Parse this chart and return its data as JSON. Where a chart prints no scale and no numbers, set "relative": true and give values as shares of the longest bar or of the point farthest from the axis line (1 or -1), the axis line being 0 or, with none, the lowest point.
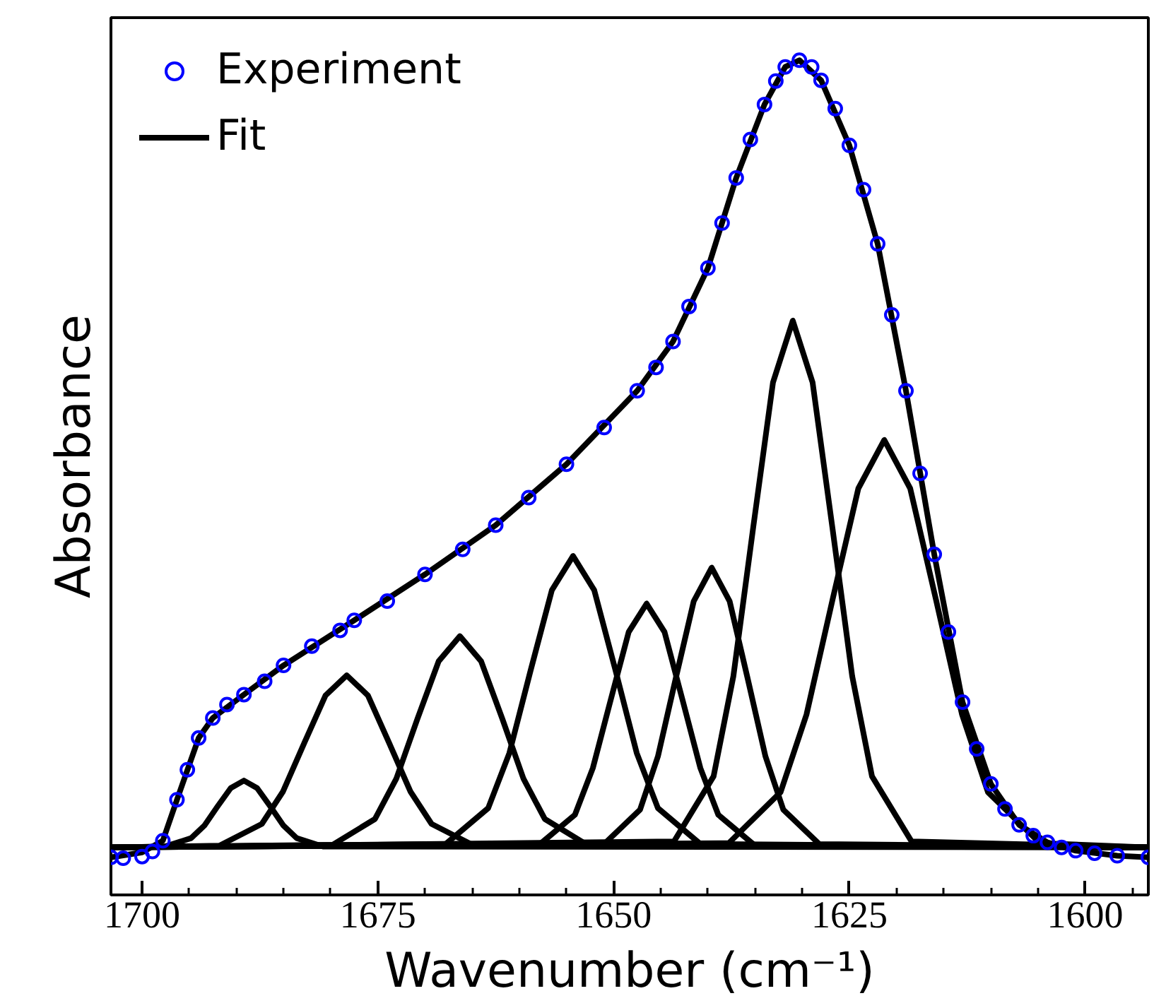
{
  "chart_data": {
    "type": "line",
    "relative": true,
    "xlabel": "Wavenumber (cm⁻¹)",
    "ylabel": "Absorbance",
    "xlim": [
      1703.3,
      1593.3
    ],
    "xticks": [
      1700,
      1675,
      1650,
      1625,
      1600
    ],
    "tick_labels": "x",
    "grid": false,
    "legend": "top left",
    "line_style": "solid",
    "series": [
      {
        "name": "Experiment",
        "type": "scatter",
        "marker": "circle",
        "color": "#0000ff",
        "x": [
          1703.3,
          1702,
          1700,
          1698.9,
          1697.8,
          1696.3,
          1695.2,
          1694,
          1692.5,
          1691,
          1689.2,
          1687,
          1685,
          1682,
          1679,
          1677.5,
          1674,
          1670,
          1666,
          1662.5,
          1659,
          1655,
          1651,
          1647.5,
          1645.5,
          1643.7,
          1642,
          1640,
          1638.5,
          1637,
          1635.5,
          1634,
          1632.8,
          1631.8,
          1630.3,
          1629,
          1628,
          1626.5,
          1625,
          1623.5,
          1622,
          1620.5,
          1619,
          1617.5,
          1616,
          1614.5,
          1613,
          1611.5,
          1610,
          1608.5,
          1607,
          1605.5,
          1604,
          1602.5,
          1601,
          1599,
          1596.6,
          1593.3
        ],
        "values": [
          0.045,
          0.044,
          0.046,
          0.052,
          0.065,
          0.114,
          0.15,
          0.188,
          0.212,
          0.228,
          0.24,
          0.256,
          0.275,
          0.298,
          0.317,
          0.329,
          0.352,
          0.384,
          0.414,
          0.443,
          0.476,
          0.516,
          0.56,
          0.604,
          0.632,
          0.663,
          0.705,
          0.751,
          0.805,
          0.859,
          0.905,
          0.947,
          0.975,
          0.992,
          1.0,
          0.992,
          0.976,
          0.942,
          0.898,
          0.845,
          0.78,
          0.695,
          0.604,
          0.505,
          0.408,
          0.315,
          0.231,
          0.175,
          0.133,
          0.103,
          0.084,
          0.071,
          0.063,
          0.057,
          0.053,
          0.05,
          0.047,
          0.045
        ]
      },
      {
        "name": "Fit",
        "color": "#000000",
        "x": [
          1703.3,
          1700,
          1697.8,
          1696.3,
          1694,
          1692.5,
          1689.2,
          1685,
          1677.5,
          1670,
          1662.5,
          1655,
          1647.5,
          1643.7,
          1640,
          1637,
          1634,
          1631.8,
          1630.3,
          1628,
          1625,
          1622,
          1619,
          1616,
          1613,
          1610,
          1607,
          1604,
          1601,
          1596.6,
          1593.3
        ],
        "values": [
          0.045,
          0.051,
          0.065,
          0.114,
          0.188,
          0.212,
          0.24,
          0.275,
          0.329,
          0.384,
          0.443,
          0.516,
          0.604,
          0.663,
          0.751,
          0.859,
          0.947,
          0.992,
          1.0,
          0.976,
          0.898,
          0.78,
          0.604,
          0.408,
          0.231,
          0.133,
          0.084,
          0.063,
          0.053,
          0.047,
          0.045
        ]
      },
      {
        "type": "line",
        "color": "#000000",
        "x": [
          1593.3,
          1680.8,
          1683.6,
          1685.0,
          1686.4,
          1687.8,
          1689.2,
          1690.6,
          1692.0,
          1693.4,
          1694.8,
          1697.6,
          1703.3
        ],
        "values": [
          0.057,
          0.058,
          0.068,
          0.083,
          0.106,
          0.128,
          0.137,
          0.128,
          0.106,
          0.083,
          0.068,
          0.058,
          0.057
        ]
      },
      {
        "type": "line",
        "color": "#000000",
        "x": [
          1593.3,
          1664.8,
          1669.3,
          1671.55,
          1673.8,
          1676.05,
          1678.3,
          1680.55,
          1682.8,
          1685.05,
          1687.3,
          1691.8,
          1703.3
        ],
        "values": [
          0.057,
          0.059,
          0.085,
          0.124,
          0.182,
          0.239,
          0.263,
          0.239,
          0.182,
          0.124,
          0.085,
          0.059,
          0.057
        ]
      },
      {
        "type": "line",
        "color": "#000000",
        "x": [
          1593.3,
          1652.8,
          1657.3,
          1659.55,
          1661.8,
          1664.05,
          1666.3,
          1668.55,
          1670.8,
          1673.05,
          1675.3,
          1679.8,
          1703.3
        ],
        "values": [
          0.057,
          0.06,
          0.091,
          0.139,
          0.211,
          0.28,
          0.31,
          0.28,
          0.211,
          0.139,
          0.091,
          0.06,
          0.057
        ]
      },
      {
        "type": "line",
        "color": "#000000",
        "x": [
          1593.3,
          1640.8,
          1645.3,
          1647.55,
          1649.8,
          1652.05,
          1654.3,
          1656.55,
          1658.8,
          1661.05,
          1663.3,
          1667.8,
          1703.3
        ],
        "values": [
          0.057,
          0.061,
          0.104,
          0.17,
          0.269,
          0.365,
          0.406,
          0.365,
          0.269,
          0.17,
          0.104,
          0.061,
          0.057
        ]
      },
      {
        "type": "line",
        "color": "#000000",
        "x": [
          1593.3,
          1635.1,
          1638.9,
          1640.8,
          1642.7,
          1644.6,
          1646.5,
          1648.4,
          1650.3,
          1652.2,
          1654.1,
          1657.9,
          1703.3
        ],
        "values": [
          0.057,
          0.06,
          0.096,
          0.152,
          0.234,
          0.315,
          0.349,
          0.315,
          0.234,
          0.152,
          0.096,
          0.06,
          0.057
        ]
      },
      {
        "type": "line",
        "color": "#000000",
        "x": [
          1593.3,
          1628.2,
          1632.0,
          1633.9,
          1635.8,
          1637.7,
          1639.6,
          1641.5,
          1643.4,
          1645.3,
          1647.2,
          1651.0,
          1703.3
        ],
        "values": [
          0.057,
          0.061,
          0.102,
          0.166,
          0.26,
          0.352,
          0.392,
          0.352,
          0.26,
          0.166,
          0.102,
          0.061,
          0.057
        ]
      },
      {
        "type": "line",
        "color": "#000000",
        "x": [
          1593.3,
          1618.4,
          1622.6,
          1624.7,
          1626.8,
          1628.9,
          1631.0,
          1633.1,
          1635.2,
          1637.3,
          1639.4,
          1643.6,
          1703.3
        ],
        "values": [
          0.057,
          0.064,
          0.142,
          0.262,
          0.44,
          0.614,
          0.688,
          0.614,
          0.44,
          0.262,
          0.142,
          0.064,
          0.057
        ]
      },
      {
        "type": "line",
        "color": "#000000",
        "x": [
          1593.3,
          1604.8,
          1610.3,
          1613.05,
          1615.8,
          1618.55,
          1621.3,
          1624.05,
          1626.8,
          1629.55,
          1632.3,
          1637.8,
          1703.3
        ],
        "values": [
          0.057,
          0.062,
          0.123,
          0.216,
          0.353,
          0.487,
          0.545,
          0.487,
          0.353,
          0.216,
          0.123,
          0.062,
          0.057
        ]
      }
    ]
  }
}
